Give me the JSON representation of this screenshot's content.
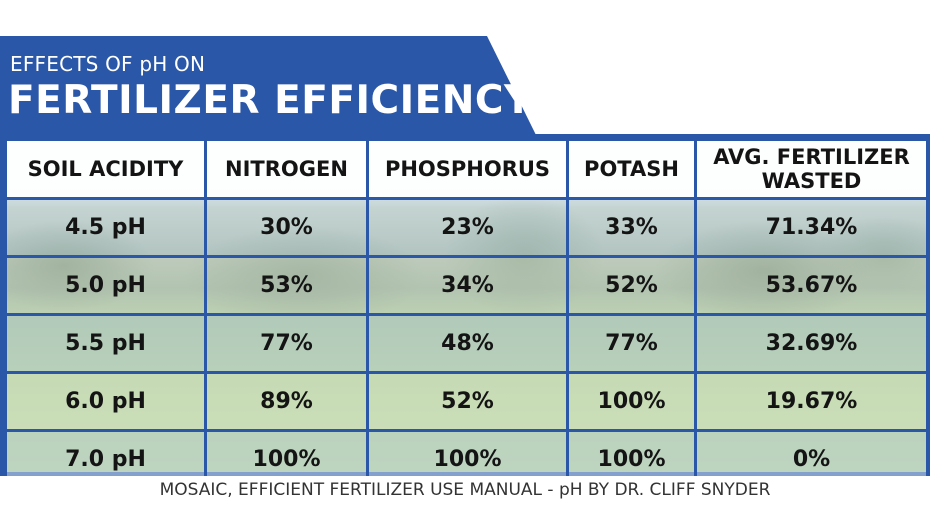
{
  "header": {
    "subtitle": "EFFECTS OF pH ON",
    "title": "FERTILIZER EFFICIENCY"
  },
  "table": {
    "columns": [
      "SOIL ACIDITY",
      "NITROGEN",
      "PHOSPHORUS",
      "POTASH",
      "AVG. FERTILIZER WASTED"
    ],
    "rows": [
      [
        "4.5 pH",
        "30%",
        "23%",
        "33%",
        "71.34%"
      ],
      [
        "5.0 pH",
        "53%",
        "34%",
        "52%",
        "53.67%"
      ],
      [
        "5.5 pH",
        "77%",
        "48%",
        "77%",
        "32.69%"
      ],
      [
        "6.0 pH",
        "89%",
        "52%",
        "100%",
        "19.67%"
      ],
      [
        "7.0 pH",
        "100%",
        "100%",
        "100%",
        "0%"
      ]
    ]
  },
  "footer": {
    "source": "MOSAIC, EFFICIENT FERTILIZER USE MANUAL - pH BY DR. CLIFF SNYDER"
  },
  "colors": {
    "accent": "#2b57a8",
    "text": "#141414"
  }
}
